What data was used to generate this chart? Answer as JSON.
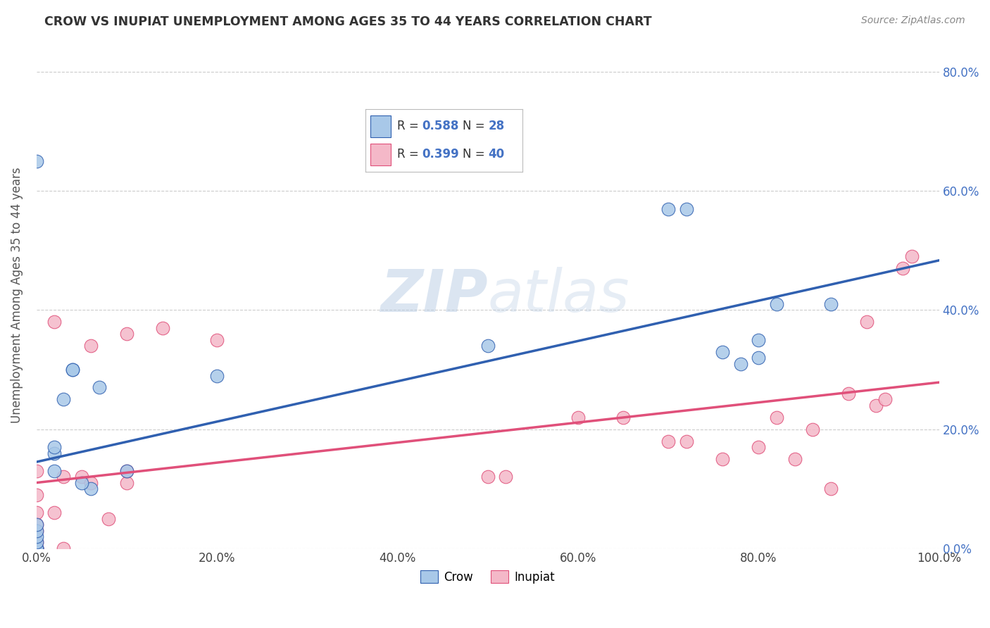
{
  "title": "CROW VS INUPIAT UNEMPLOYMENT AMONG AGES 35 TO 44 YEARS CORRELATION CHART",
  "source": "Source: ZipAtlas.com",
  "ylabel": "Unemployment Among Ages 35 to 44 years",
  "xlim": [
    0,
    1.0
  ],
  "ylim": [
    0,
    0.85
  ],
  "xticks": [
    0.0,
    0.2,
    0.4,
    0.6,
    0.8,
    1.0
  ],
  "yticks": [
    0.0,
    0.2,
    0.4,
    0.6,
    0.8
  ],
  "xtick_labels": [
    "0.0%",
    "20.0%",
    "40.0%",
    "60.0%",
    "80.0%",
    "100.0%"
  ],
  "ytick_labels_right": [
    "0.0%",
    "20.0%",
    "40.0%",
    "60.0%",
    "80.0%"
  ],
  "crow_color": "#a8c8e8",
  "inupiat_color": "#f4b8c8",
  "crow_line_color": "#3060b0",
  "inupiat_line_color": "#e0507a",
  "crow_R": 0.588,
  "crow_N": 28,
  "inupiat_R": 0.399,
  "inupiat_N": 40,
  "background_color": "#ffffff",
  "grid_color": "#cccccc",
  "watermark": "ZIPatlas",
  "crow_x": [
    0.0,
    0.0,
    0.0,
    0.0,
    0.0,
    0.0,
    0.0,
    0.0,
    0.02,
    0.02,
    0.02,
    0.04,
    0.04,
    0.06,
    0.07,
    0.1,
    0.05,
    0.2,
    0.5,
    0.7,
    0.72,
    0.76,
    0.78,
    0.8,
    0.8,
    0.82,
    0.88,
    0.03
  ],
  "crow_y": [
    0.0,
    0.0,
    0.0,
    0.01,
    0.02,
    0.03,
    0.04,
    0.65,
    0.13,
    0.16,
    0.17,
    0.3,
    0.3,
    0.1,
    0.27,
    0.13,
    0.11,
    0.29,
    0.34,
    0.57,
    0.57,
    0.33,
    0.31,
    0.35,
    0.32,
    0.41,
    0.41,
    0.25
  ],
  "inupiat_x": [
    0.0,
    0.0,
    0.0,
    0.0,
    0.0,
    0.0,
    0.0,
    0.0,
    0.0,
    0.02,
    0.02,
    0.03,
    0.03,
    0.05,
    0.06,
    0.06,
    0.08,
    0.1,
    0.1,
    0.1,
    0.14,
    0.2,
    0.5,
    0.52,
    0.6,
    0.65,
    0.7,
    0.72,
    0.76,
    0.8,
    0.82,
    0.84,
    0.86,
    0.88,
    0.9,
    0.92,
    0.93,
    0.94,
    0.96,
    0.97
  ],
  "inupiat_y": [
    0.0,
    0.0,
    0.0,
    0.01,
    0.03,
    0.04,
    0.06,
    0.09,
    0.13,
    0.06,
    0.38,
    0.0,
    0.12,
    0.12,
    0.11,
    0.34,
    0.05,
    0.11,
    0.13,
    0.36,
    0.37,
    0.35,
    0.12,
    0.12,
    0.22,
    0.22,
    0.18,
    0.18,
    0.15,
    0.17,
    0.22,
    0.15,
    0.2,
    0.1,
    0.26,
    0.38,
    0.24,
    0.25,
    0.47,
    0.49
  ]
}
